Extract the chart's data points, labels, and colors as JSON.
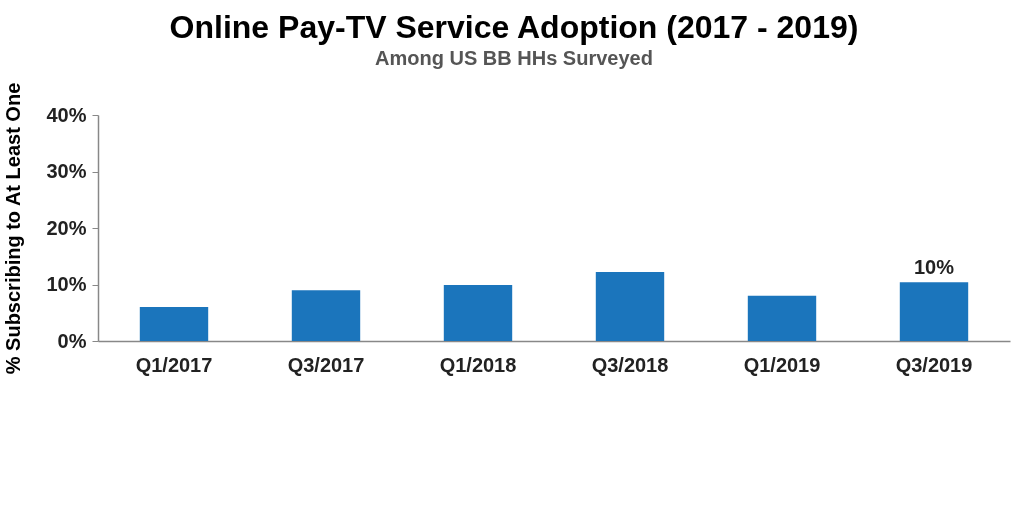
{
  "chart_data": {
    "type": "bar",
    "title": "Online Pay-TV Service Adoption (2017 - 2019)",
    "subtitle": "Among US BB HHs Surveyed",
    "ylabel": "% Subscribing to At Least One",
    "categories": [
      "Q1/2017",
      "Q3/2017",
      "Q1/2018",
      "Q3/2018",
      "Q1/2019",
      "Q3/2019"
    ],
    "values": [
      6.0,
      9.0,
      9.9,
      12.2,
      8.0,
      10.4
    ],
    "value_labels": [
      null,
      null,
      null,
      null,
      null,
      "10%"
    ],
    "color": "#1b75bc",
    "ylim": [
      0,
      40
    ],
    "yticks": [
      {
        "value": 0,
        "label": "0%"
      },
      {
        "value": 10,
        "label": "10%"
      },
      {
        "value": 20,
        "label": "20%"
      },
      {
        "value": 30,
        "label": "30%"
      },
      {
        "value": 40,
        "label": "40%"
      }
    ],
    "grid": false
  }
}
